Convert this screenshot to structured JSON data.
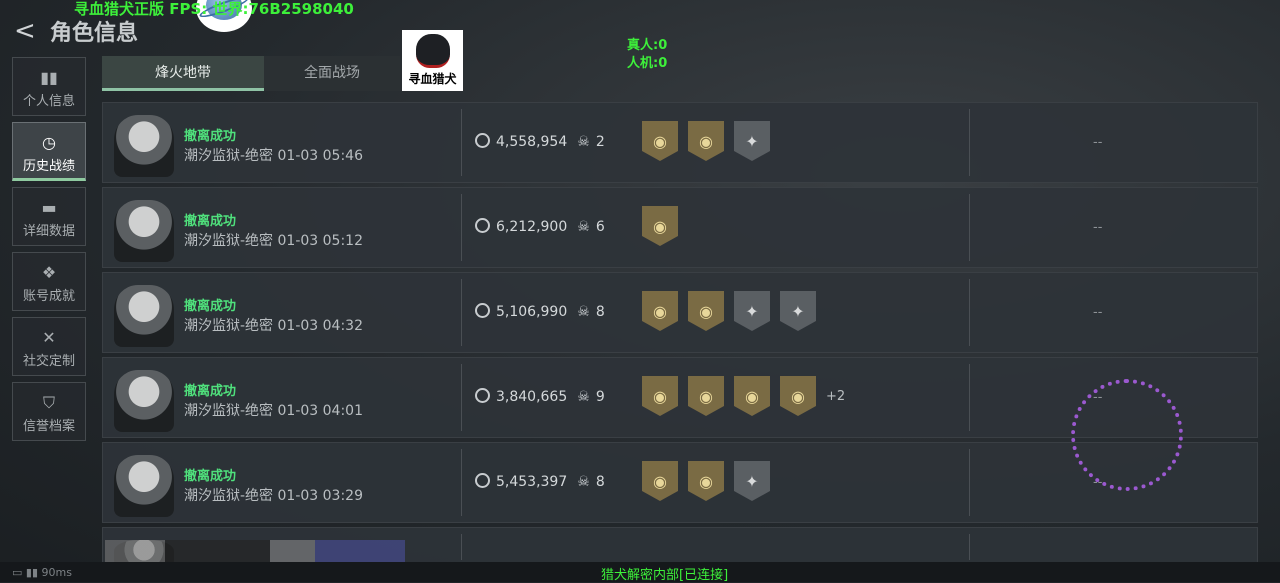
{
  "header": {
    "title": "角色信息",
    "overlay_text": "寻血猎犬正版  FPS:  世界:76B2598040",
    "real_players": "真人:0",
    "bots": "人机:0",
    "logo_text": "寻血猎犬"
  },
  "sidebar": {
    "items": [
      {
        "label": "个人信息",
        "icon": "bar-chart-icon",
        "glyph": "▮▮"
      },
      {
        "label": "历史战绩",
        "icon": "clock-icon",
        "glyph": "◷",
        "active": true
      },
      {
        "label": "详细数据",
        "icon": "folder-icon",
        "glyph": "▬"
      },
      {
        "label": "账号成就",
        "icon": "achievement-icon",
        "glyph": "❖"
      },
      {
        "label": "社交定制",
        "icon": "tools-icon",
        "glyph": "✕"
      },
      {
        "label": "信誉档案",
        "icon": "shield-icon",
        "glyph": "⛉"
      }
    ]
  },
  "tabs": [
    {
      "label": "烽火地带",
      "active": true
    },
    {
      "label": "全面战场"
    }
  ],
  "rows": [
    {
      "status": "撤离成功",
      "meta": "潮汐监狱-绝密 01-03 05:46",
      "money": "4,558,954",
      "kills": "2",
      "badges": [
        "gold",
        "gold",
        "grey"
      ],
      "more": "",
      "result": "--"
    },
    {
      "status": "撤离成功",
      "meta": "潮汐监狱-绝密 01-03 05:12",
      "money": "6,212,900",
      "kills": "6",
      "badges": [
        "gold"
      ],
      "more": "",
      "result": "--"
    },
    {
      "status": "撤离成功",
      "meta": "潮汐监狱-绝密 01-03 04:32",
      "money": "5,106,990",
      "kills": "8",
      "badges": [
        "gold",
        "gold",
        "grey",
        "grey"
      ],
      "more": "",
      "result": "--"
    },
    {
      "status": "撤离成功",
      "meta": "潮汐监狱-绝密 01-03 04:01",
      "money": "3,840,665",
      "kills": "9",
      "badges": [
        "gold",
        "gold",
        "gold",
        "gold"
      ],
      "more": "+2",
      "result": "--"
    },
    {
      "status": "撤离成功",
      "meta": "潮汐监狱-绝密 01-03 03:29",
      "money": "5,453,397",
      "kills": "8",
      "badges": [
        "gold",
        "gold",
        "grey"
      ],
      "more": "",
      "result": "--"
    }
  ],
  "footer": {
    "ping": "90ms",
    "connection": "猎犬解密内部[已连接]"
  }
}
